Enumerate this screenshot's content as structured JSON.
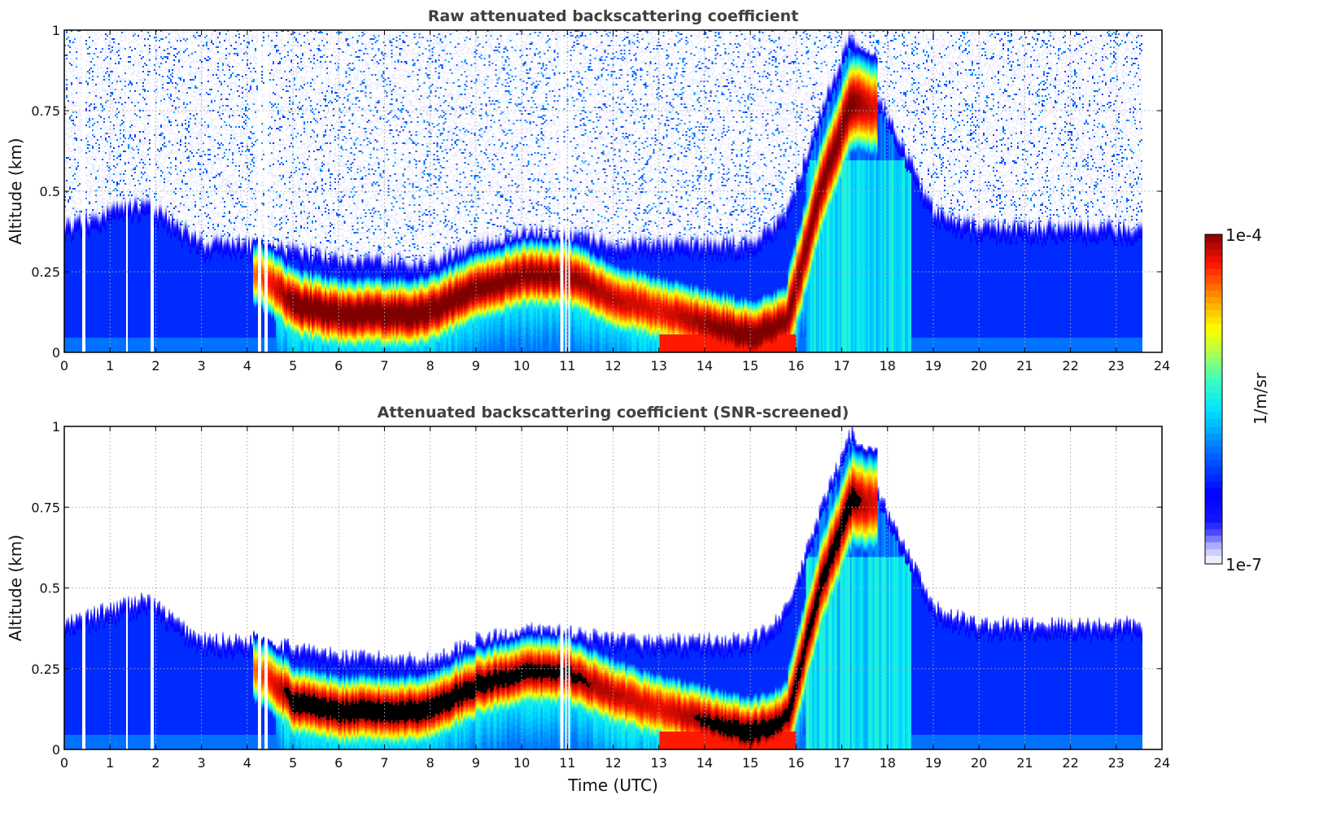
{
  "chart_data": [
    {
      "type": "heatmap",
      "title": "Raw attenuated backscattering coefficient",
      "xlabel": "",
      "ylabel": "Altitude (km)",
      "xlim": [
        0,
        24
      ],
      "ylim": [
        0,
        1
      ],
      "xticks": [
        "0",
        "1",
        "2",
        "3",
        "4",
        "5",
        "6",
        "7",
        "8",
        "9",
        "10",
        "11",
        "12",
        "13",
        "14",
        "15",
        "16",
        "17",
        "18",
        "19",
        "20",
        "21",
        "22",
        "23",
        "24"
      ],
      "yticks": [
        "0",
        "0.25",
        "0.5",
        "0.75",
        "1"
      ],
      "grid": true,
      "screened": false
    },
    {
      "type": "heatmap",
      "title": "Attenuated backscattering coefficient (SNR-screened)",
      "xlabel": "Time (UTC)",
      "ylabel": "Altitude (km)",
      "xlim": [
        0,
        24
      ],
      "ylim": [
        0,
        1
      ],
      "xticks": [
        "0",
        "1",
        "2",
        "3",
        "4",
        "5",
        "6",
        "7",
        "8",
        "9",
        "10",
        "11",
        "12",
        "13",
        "14",
        "15",
        "16",
        "17",
        "18",
        "19",
        "20",
        "21",
        "22",
        "23",
        "24"
      ],
      "yticks": [
        "0",
        "0.25",
        "0.5",
        "0.75",
        "1"
      ],
      "grid": true,
      "screened": true
    }
  ],
  "colorbar": {
    "label": "1/m/sr",
    "min_label": "1e-7",
    "max_label": "1e-4",
    "log10_range": [
      -7,
      -4
    ],
    "scale": "log"
  },
  "profile": {
    "data_end_hour": 23.55,
    "aerosol_top_km": {
      "hours": [
        0,
        1,
        1.8,
        2.5,
        3,
        4,
        5,
        6,
        8,
        9,
        10,
        11,
        12,
        14,
        15,
        15.8,
        16.5,
        17.2,
        17.8,
        18.5,
        19,
        20,
        23.6
      ],
      "values": [
        0.35,
        0.4,
        0.43,
        0.35,
        0.3,
        0.3,
        0.28,
        0.25,
        0.24,
        0.3,
        0.33,
        0.33,
        0.3,
        0.3,
        0.3,
        0.4,
        0.7,
        0.95,
        0.75,
        0.55,
        0.4,
        0.35,
        0.35
      ]
    },
    "dense_layer_center_km": {
      "hours": [
        4.1,
        4.5,
        5,
        6,
        7.5,
        8,
        9,
        10,
        11,
        12,
        13,
        14,
        15,
        15.8,
        16.5,
        17.2,
        17.7
      ],
      "values": [
        0.25,
        0.22,
        0.15,
        0.12,
        0.12,
        0.13,
        0.2,
        0.24,
        0.24,
        0.17,
        0.13,
        0.09,
        0.05,
        0.1,
        0.5,
        0.78,
        0.76
      ]
    },
    "dense_layer_peak_log10": {
      "hours": [
        4.1,
        5,
        8,
        11,
        12,
        13,
        14,
        15,
        16,
        17.2,
        17.7
      ],
      "values": [
        -4.5,
        -3.9,
        -3.9,
        -4.0,
        -4.1,
        -4.2,
        -4.0,
        -3.9,
        -4.0,
        -3.95,
        -4.2
      ]
    },
    "missing_hours": [
      0.4,
      1.35,
      1.9,
      4.25,
      4.4,
      10.85,
      10.95,
      11.02
    ]
  }
}
